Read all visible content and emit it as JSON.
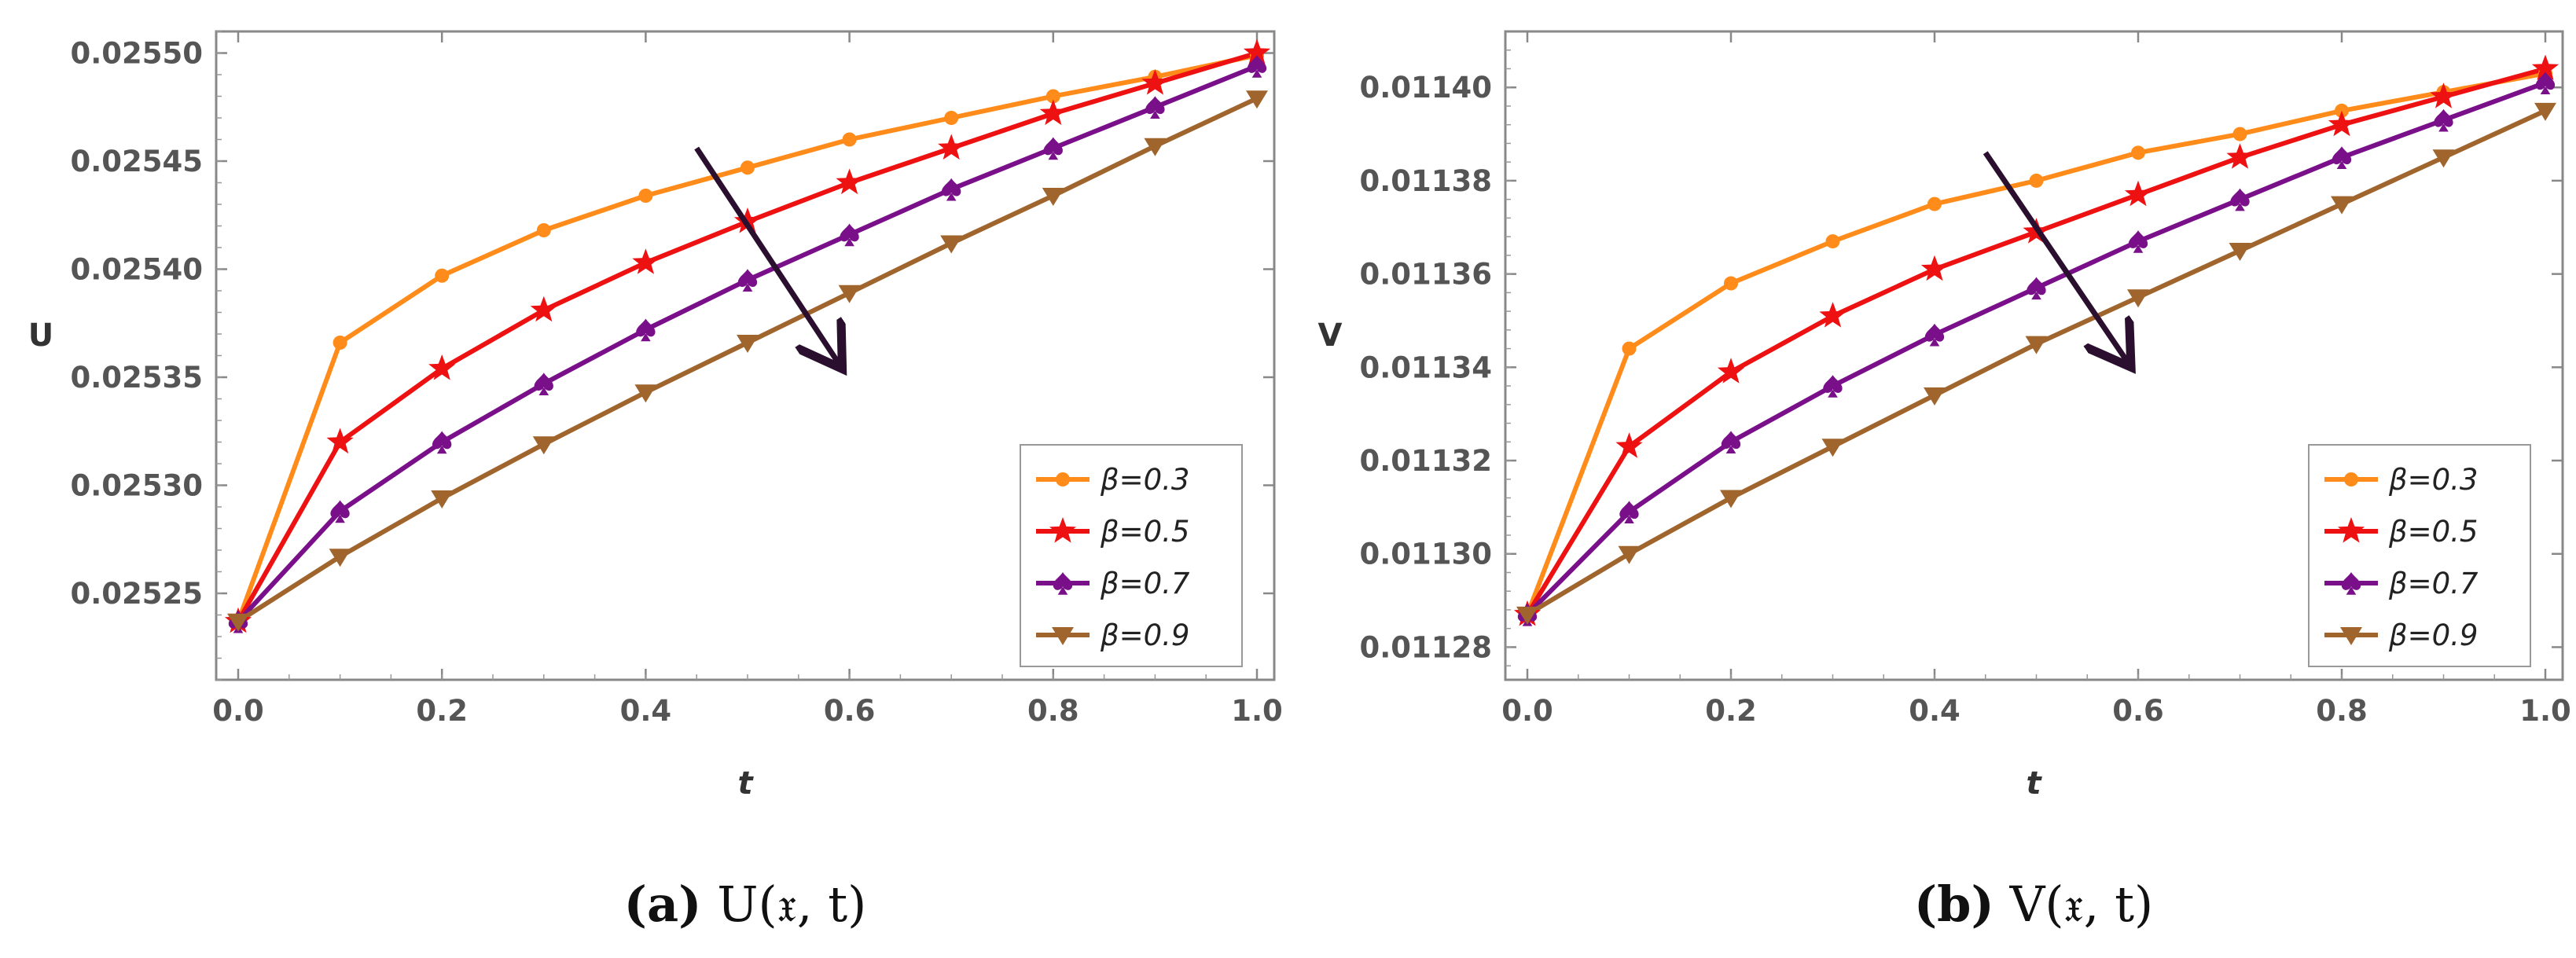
{
  "chart_data": [
    {
      "type": "line",
      "caption_prefix": "(a)",
      "caption_math": "U(𝔵, t)",
      "xlabel": "t",
      "ylabel": "U",
      "xlim": [
        0,
        1
      ],
      "ylim": [
        0.02521,
        0.02551
      ],
      "xticks": [
        "0.0",
        "0.2",
        "0.4",
        "0.6",
        "0.8",
        "1.0"
      ],
      "yticks": [
        "0.02525",
        "0.02530",
        "0.02535",
        "0.02540",
        "0.02545",
        "0.02550"
      ],
      "x": [
        0,
        0.1,
        0.2,
        0.3,
        0.4,
        0.5,
        0.6,
        0.7,
        0.8,
        0.9,
        1.0
      ],
      "series": [
        {
          "name": "β=0.3",
          "color": "#FF8C1A",
          "marker": "circle",
          "values": [
            0.025237,
            0.025366,
            0.025397,
            0.025418,
            0.025434,
            0.025447,
            0.02546,
            0.02547,
            0.02548,
            0.025489,
            0.025499
          ]
        },
        {
          "name": "β=0.5",
          "color": "#EE1111",
          "marker": "star",
          "values": [
            0.025237,
            0.02532,
            0.025354,
            0.025381,
            0.025403,
            0.025422,
            0.02544,
            0.025456,
            0.025472,
            0.025486,
            0.0255
          ]
        },
        {
          "name": "β=0.7",
          "color": "#7A0F8A",
          "marker": "spade",
          "values": [
            0.025237,
            0.025288,
            0.02532,
            0.025347,
            0.025372,
            0.025395,
            0.025416,
            0.025437,
            0.025456,
            0.025475,
            0.025494
          ]
        },
        {
          "name": "β=0.9",
          "color": "#A0652D",
          "marker": "triangle-down",
          "values": [
            0.025237,
            0.025267,
            0.025294,
            0.025319,
            0.025343,
            0.025366,
            0.025389,
            0.025412,
            0.025434,
            0.025457,
            0.025479
          ]
        }
      ],
      "arrow": {
        "from": [
          0.45,
          0.025456
        ],
        "to": [
          0.59,
          0.025356
        ]
      },
      "legend_position": "bottom-right"
    },
    {
      "type": "line",
      "caption_prefix": "(b)",
      "caption_math": "V(𝔵, t)",
      "xlabel": "t",
      "ylabel": "V",
      "xlim": [
        0,
        1
      ],
      "ylim": [
        0.011273,
        0.011412
      ],
      "xticks": [
        "0.0",
        "0.2",
        "0.4",
        "0.6",
        "0.8",
        "1.0"
      ],
      "yticks": [
        "0.01128",
        "0.01130",
        "0.01132",
        "0.01134",
        "0.01136",
        "0.01138",
        "0.01140"
      ],
      "x": [
        0,
        0.1,
        0.2,
        0.3,
        0.4,
        0.5,
        0.6,
        0.7,
        0.8,
        0.9,
        1.0
      ],
      "series": [
        {
          "name": "β=0.3",
          "color": "#FF8C1A",
          "marker": "circle",
          "values": [
            0.011287,
            0.011344,
            0.011358,
            0.011367,
            0.011375,
            0.01138,
            0.011386,
            0.01139,
            0.011395,
            0.011399,
            0.011403
          ]
        },
        {
          "name": "β=0.5",
          "color": "#EE1111",
          "marker": "star",
          "values": [
            0.011287,
            0.011323,
            0.011339,
            0.011351,
            0.011361,
            0.011369,
            0.011377,
            0.011385,
            0.011392,
            0.011398,
            0.011404
          ]
        },
        {
          "name": "β=0.7",
          "color": "#7A0F8A",
          "marker": "spade",
          "values": [
            0.011287,
            0.011309,
            0.011324,
            0.011336,
            0.011347,
            0.011357,
            0.011367,
            0.011376,
            0.011385,
            0.011393,
            0.011401
          ]
        },
        {
          "name": "β=0.9",
          "color": "#A0652D",
          "marker": "triangle-down",
          "values": [
            0.011287,
            0.0113,
            0.011312,
            0.011323,
            0.011334,
            0.011345,
            0.011355,
            0.011365,
            0.011375,
            0.011385,
            0.011395
          ]
        }
      ],
      "arrow": {
        "from": [
          0.45,
          0.011386
        ],
        "to": [
          0.59,
          0.011341
        ]
      },
      "legend_position": "bottom-right"
    }
  ]
}
